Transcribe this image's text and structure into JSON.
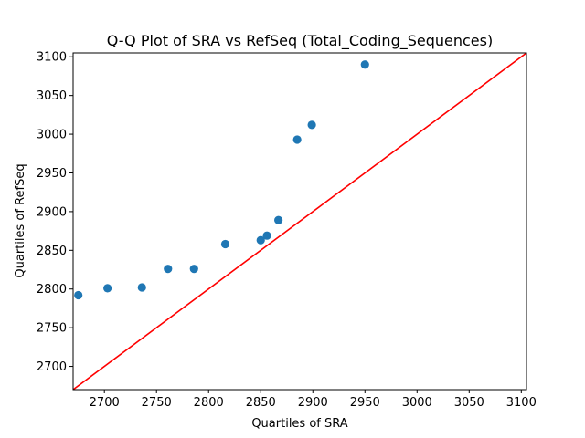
{
  "chart_data": {
    "type": "scatter",
    "title": "Q-Q Plot of SRA vs RefSeq (Total_Coding_Sequences)",
    "xlabel": "Quartiles of SRA",
    "ylabel": "Quartiles of RefSeq",
    "xlim": [
      2670,
      3105
    ],
    "ylim": [
      2670,
      3105
    ],
    "xticks": [
      2700,
      2750,
      2800,
      2850,
      2900,
      2950,
      3000,
      3050,
      3100
    ],
    "yticks": [
      2700,
      2750,
      2800,
      2850,
      2900,
      2950,
      3000,
      3050,
      3100
    ],
    "grid": false,
    "series": [
      {
        "type": "scatter",
        "color": "#1f77b4",
        "points": [
          {
            "x": 2675,
            "y": 2792
          },
          {
            "x": 2703,
            "y": 2801
          },
          {
            "x": 2736,
            "y": 2802
          },
          {
            "x": 2761,
            "y": 2826
          },
          {
            "x": 2786,
            "y": 2826
          },
          {
            "x": 2816,
            "y": 2858
          },
          {
            "x": 2850,
            "y": 2863
          },
          {
            "x": 2856,
            "y": 2869
          },
          {
            "x": 2867,
            "y": 2889
          },
          {
            "x": 2885,
            "y": 2993
          },
          {
            "x": 2899,
            "y": 3012
          },
          {
            "x": 2950,
            "y": 3090
          }
        ]
      },
      {
        "type": "line",
        "color": "#ff0000",
        "x": [
          2670,
          3105
        ],
        "y": [
          2670,
          3105
        ]
      }
    ]
  }
}
